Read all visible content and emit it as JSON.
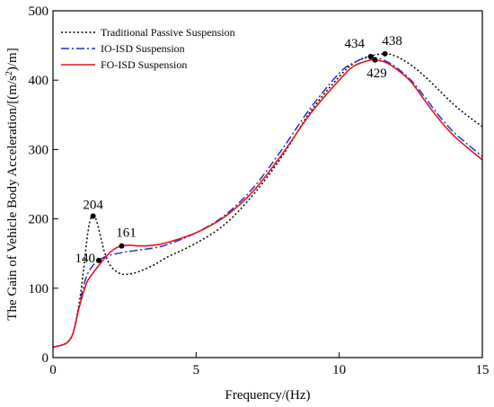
{
  "chart_data": {
    "type": "line",
    "title": "",
    "xlabel": "Frequency/(Hz)",
    "ylabel_prefix": "The Gain of Vehicle Body Acceleration/[(m/s",
    "ylabel_sup": "2",
    "ylabel_suffix": ")/m]",
    "xlim": [
      0,
      15
    ],
    "ylim": [
      0,
      500
    ],
    "xticks": [
      0,
      5,
      10,
      15
    ],
    "yticks": [
      0,
      100,
      200,
      300,
      400,
      500
    ],
    "grid": false,
    "legend_position": "top-left",
    "series": [
      {
        "name": "Traditional Passive Suspension",
        "color": "#000000",
        "dash": "dotted",
        "points": [
          [
            0,
            15
          ],
          [
            0.3,
            18
          ],
          [
            0.5,
            22
          ],
          [
            0.7,
            35
          ],
          [
            0.9,
            75
          ],
          [
            1.05,
            120
          ],
          [
            1.2,
            175
          ],
          [
            1.3,
            198
          ],
          [
            1.4,
            204
          ],
          [
            1.5,
            200
          ],
          [
            1.6,
            185
          ],
          [
            1.7,
            168
          ],
          [
            1.8,
            152
          ],
          [
            2.0,
            133
          ],
          [
            2.3,
            122
          ],
          [
            2.6,
            120
          ],
          [
            3.0,
            124
          ],
          [
            3.5,
            133
          ],
          [
            4.0,
            145
          ],
          [
            5.0,
            165
          ],
          [
            6.0,
            192
          ],
          [
            7.0,
            235
          ],
          [
            8.0,
            290
          ],
          [
            9.0,
            355
          ],
          [
            10.0,
            405
          ],
          [
            10.5,
            424
          ],
          [
            11.0,
            434
          ],
          [
            11.6,
            438
          ],
          [
            12.0,
            434
          ],
          [
            12.5,
            422
          ],
          [
            13.0,
            405
          ],
          [
            13.5,
            385
          ],
          [
            14.0,
            365
          ],
          [
            14.5,
            348
          ],
          [
            15.0,
            333
          ]
        ]
      },
      {
        "name": "IO-ISD Suspension",
        "color": "#1f2fcc",
        "dash": "dashdot",
        "points": [
          [
            0,
            15
          ],
          [
            0.3,
            18
          ],
          [
            0.5,
            22
          ],
          [
            0.7,
            35
          ],
          [
            0.9,
            72
          ],
          [
            1.05,
            100
          ],
          [
            1.2,
            120
          ],
          [
            1.4,
            133
          ],
          [
            1.6,
            140
          ],
          [
            1.8,
            145
          ],
          [
            2.0,
            148
          ],
          [
            2.5,
            152
          ],
          [
            3.0,
            155
          ],
          [
            3.5,
            158
          ],
          [
            4.0,
            163
          ],
          [
            5.0,
            180
          ],
          [
            6.0,
            205
          ],
          [
            7.0,
            245
          ],
          [
            8.0,
            300
          ],
          [
            9.0,
            360
          ],
          [
            10.0,
            410
          ],
          [
            10.5,
            425
          ],
          [
            11.0,
            433
          ],
          [
            11.3,
            432
          ],
          [
            11.6,
            428
          ],
          [
            12.0,
            418
          ],
          [
            12.5,
            400
          ],
          [
            13.0,
            375
          ],
          [
            13.5,
            348
          ],
          [
            14.0,
            325
          ],
          [
            14.5,
            307
          ],
          [
            15.0,
            290
          ]
        ]
      },
      {
        "name": "FO-ISD Suspension",
        "color": "#e8141c",
        "dash": "solid",
        "points": [
          [
            0,
            15
          ],
          [
            0.3,
            18
          ],
          [
            0.5,
            22
          ],
          [
            0.7,
            35
          ],
          [
            0.9,
            70
          ],
          [
            1.05,
            92
          ],
          [
            1.2,
            110
          ],
          [
            1.4,
            122
          ],
          [
            1.6,
            133
          ],
          [
            1.8,
            143
          ],
          [
            2.0,
            152
          ],
          [
            2.2,
            158
          ],
          [
            2.4,
            161
          ],
          [
            2.7,
            162
          ],
          [
            3.0,
            161
          ],
          [
            3.5,
            162
          ],
          [
            4.0,
            166
          ],
          [
            5.0,
            180
          ],
          [
            6.0,
            203
          ],
          [
            7.0,
            240
          ],
          [
            8.0,
            293
          ],
          [
            9.0,
            352
          ],
          [
            10.0,
            400
          ],
          [
            10.5,
            420
          ],
          [
            11.0,
            428
          ],
          [
            11.2,
            429
          ],
          [
            11.6,
            426
          ],
          [
            12.0,
            416
          ],
          [
            12.5,
            398
          ],
          [
            13.0,
            370
          ],
          [
            13.5,
            343
          ],
          [
            14.0,
            320
          ],
          [
            14.5,
            302
          ],
          [
            15.0,
            285
          ]
        ]
      }
    ],
    "markers": [
      {
        "x": 1.4,
        "y": 204,
        "label": "204",
        "series": 0
      },
      {
        "x": 11.6,
        "y": 438,
        "label": "438",
        "series": 0
      },
      {
        "x": 1.6,
        "y": 140,
        "label": "140",
        "series": 1
      },
      {
        "x": 11.1,
        "y": 434,
        "label": "434",
        "series": 1
      },
      {
        "x": 2.4,
        "y": 161,
        "label": "161",
        "series": 2
      },
      {
        "x": 11.25,
        "y": 429,
        "label": "429",
        "series": 2
      }
    ]
  }
}
